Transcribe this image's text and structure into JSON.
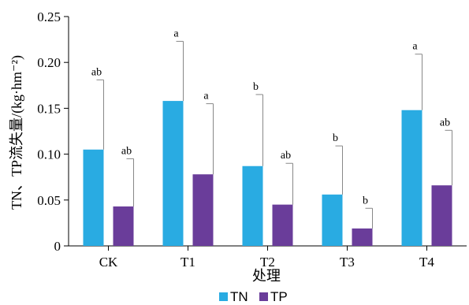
{
  "chart_data": {
    "type": "bar",
    "categories": [
      "CK",
      "T1",
      "T2",
      "T3",
      "T4"
    ],
    "series": [
      {
        "name": "TN",
        "color": "#29abe2",
        "values": [
          0.105,
          0.158,
          0.087,
          0.056,
          0.148
        ],
        "error": [
          0.076,
          0.065,
          0.078,
          0.053,
          0.061
        ],
        "letters": [
          "ab",
          "a",
          "b",
          "b",
          "a"
        ]
      },
      {
        "name": "TP",
        "color": "#6a3d9a",
        "values": [
          0.043,
          0.078,
          0.045,
          0.019,
          0.066
        ],
        "error": [
          0.052,
          0.077,
          0.045,
          0.022,
          0.06
        ],
        "letters": [
          "ab",
          "a",
          "ab",
          "b",
          "ab"
        ]
      }
    ],
    "xlabel": "处理",
    "ylabel": "TN、TP流失量/(kg·hm⁻²)",
    "ylim": [
      0,
      0.25
    ],
    "yticks": [
      "0",
      "0.05",
      "0.10",
      "0.15",
      "0.20",
      "0.25"
    ],
    "grid": false,
    "legend_position": "bottom-center"
  }
}
